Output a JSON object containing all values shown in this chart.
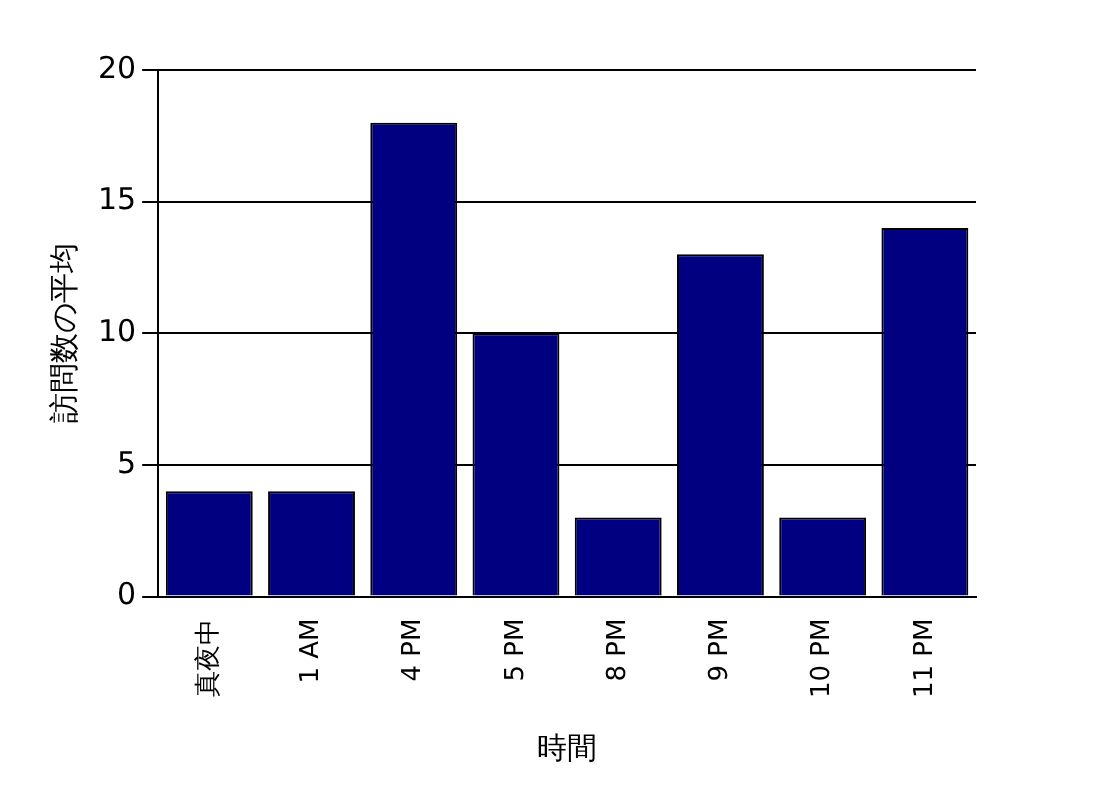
{
  "chart_data": {
    "type": "bar",
    "xlabel": "時間",
    "ylabel": "訪問数の平均",
    "categories": [
      "真夜中",
      "1 AM",
      "4 PM",
      "5 PM",
      "8 PM",
      "9 PM",
      "10 PM",
      "11 PM"
    ],
    "values": [
      4,
      4,
      18,
      10,
      3,
      13,
      3,
      14
    ],
    "color": "#000080",
    "ylim": [
      0,
      20
    ],
    "yticks": [
      0,
      5,
      10,
      15,
      20
    ],
    "grid": "y"
  }
}
